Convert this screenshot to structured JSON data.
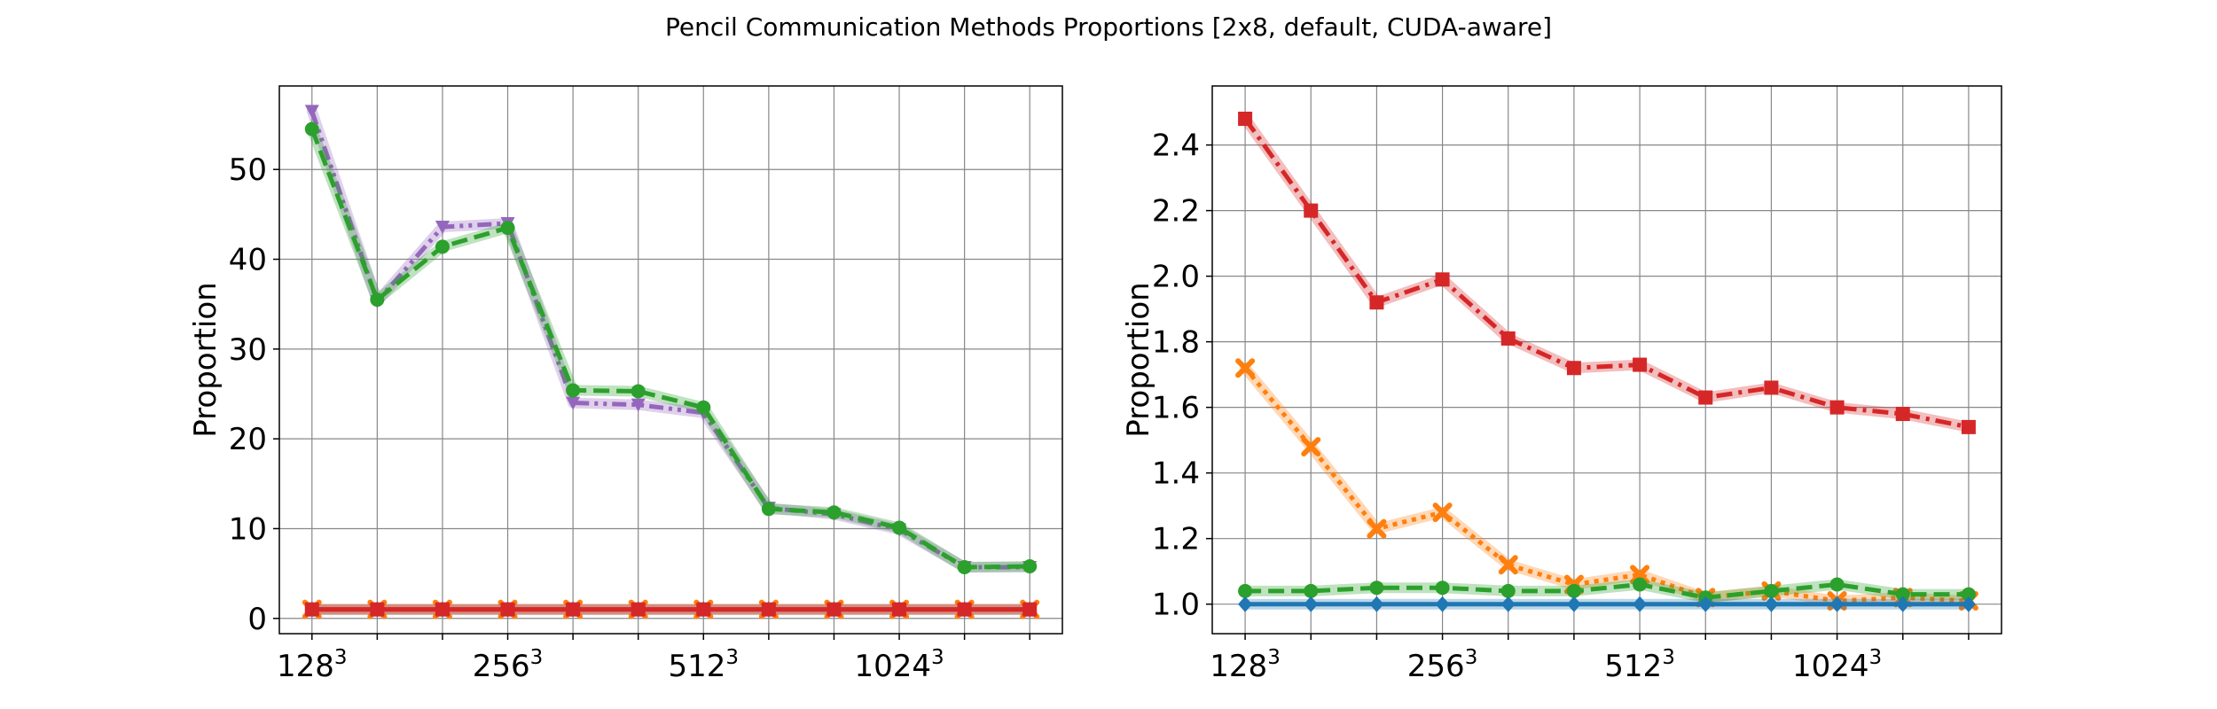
{
  "title": "Pencil Communication Methods Proportions [2x8, default, CUDA-aware]",
  "colors": {
    "blue": "#1f77b4",
    "orange": "#ff7f0e",
    "green": "#2ca02c",
    "red": "#d62728",
    "purple": "#9467bd",
    "grid": "#888888"
  },
  "chart_data": [
    {
      "type": "line",
      "title": "",
      "xlabel": "",
      "ylabel": "Proportion",
      "ylim": [
        -1.7,
        59.3
      ],
      "yticks": [
        0,
        10,
        20,
        30,
        40,
        50
      ],
      "x": [
        0,
        1,
        2,
        3,
        4,
        5,
        6,
        7,
        8,
        9,
        10,
        11
      ],
      "xlim": [
        -0.5,
        11.5
      ],
      "xticks": [
        {
          "pos": 0,
          "base": "128",
          "exp": "3"
        },
        {
          "pos": 3,
          "base": "256",
          "exp": "3"
        },
        {
          "pos": 6,
          "base": "512",
          "exp": "3"
        },
        {
          "pos": 9,
          "base": "1024",
          "exp": "3"
        }
      ],
      "series": [
        {
          "name": "purple",
          "color": "#9467bd",
          "dash": "dashdotdot",
          "marker": "triangle-down",
          "values": [
            56.5,
            35.3,
            43.6,
            44.0,
            24.0,
            23.8,
            22.9,
            12.3,
            11.6,
            9.9,
            5.7,
            5.7
          ]
        },
        {
          "name": "green",
          "color": "#2ca02c",
          "dash": "dashed",
          "marker": "circle",
          "values": [
            54.5,
            35.5,
            41.4,
            43.5,
            25.4,
            25.3,
            23.5,
            12.2,
            11.8,
            10.1,
            5.7,
            5.8
          ]
        },
        {
          "name": "blue",
          "color": "#1f77b4",
          "dash": "solid",
          "marker": "diamond",
          "values": [
            1.0,
            1.0,
            1.0,
            1.0,
            1.0,
            1.0,
            1.0,
            1.0,
            1.0,
            1.0,
            1.0,
            1.0
          ]
        },
        {
          "name": "orange",
          "color": "#ff7f0e",
          "dash": "dotted",
          "marker": "x",
          "values": [
            1.0,
            1.0,
            1.0,
            1.0,
            1.0,
            1.0,
            1.0,
            1.0,
            1.0,
            1.0,
            1.0,
            1.0
          ]
        },
        {
          "name": "red",
          "color": "#d62728",
          "dash": "solid",
          "marker": "square",
          "values": [
            1.0,
            1.0,
            1.0,
            1.0,
            1.0,
            1.0,
            1.0,
            1.0,
            1.0,
            1.0,
            1.0,
            1.0
          ]
        }
      ]
    },
    {
      "type": "line",
      "title": "",
      "xlabel": "",
      "ylabel": "Proportion",
      "ylim": [
        0.91,
        2.58
      ],
      "yticks": [
        1.0,
        1.2,
        1.4,
        1.6,
        1.8,
        2.0,
        2.2,
        2.4
      ],
      "x": [
        0,
        1,
        2,
        3,
        4,
        5,
        6,
        7,
        8,
        9,
        10,
        11
      ],
      "xlim": [
        -0.5,
        11.5
      ],
      "xticks": [
        {
          "pos": 0,
          "base": "128",
          "exp": "3"
        },
        {
          "pos": 3,
          "base": "256",
          "exp": "3"
        },
        {
          "pos": 6,
          "base": "512",
          "exp": "3"
        },
        {
          "pos": 9,
          "base": "1024",
          "exp": "3"
        }
      ],
      "series": [
        {
          "name": "red",
          "color": "#d62728",
          "dash": "dashdot",
          "marker": "square",
          "values": [
            2.48,
            2.2,
            1.92,
            1.99,
            1.81,
            1.72,
            1.73,
            1.63,
            1.66,
            1.6,
            1.58,
            1.54
          ]
        },
        {
          "name": "orange",
          "color": "#ff7f0e",
          "dash": "dotted",
          "marker": "x",
          "values": [
            1.72,
            1.48,
            1.23,
            1.28,
            1.12,
            1.06,
            1.09,
            1.02,
            1.04,
            1.01,
            1.02,
            1.01
          ]
        },
        {
          "name": "green",
          "color": "#2ca02c",
          "dash": "dashed",
          "marker": "circle",
          "values": [
            1.04,
            1.04,
            1.05,
            1.05,
            1.04,
            1.04,
            1.06,
            1.02,
            1.04,
            1.06,
            1.03,
            1.03
          ]
        },
        {
          "name": "blue",
          "color": "#1f77b4",
          "dash": "solid",
          "marker": "diamond",
          "values": [
            1.0,
            1.0,
            1.0,
            1.0,
            1.0,
            1.0,
            1.0,
            1.0,
            1.0,
            1.0,
            1.0,
            1.0
          ]
        }
      ]
    }
  ]
}
